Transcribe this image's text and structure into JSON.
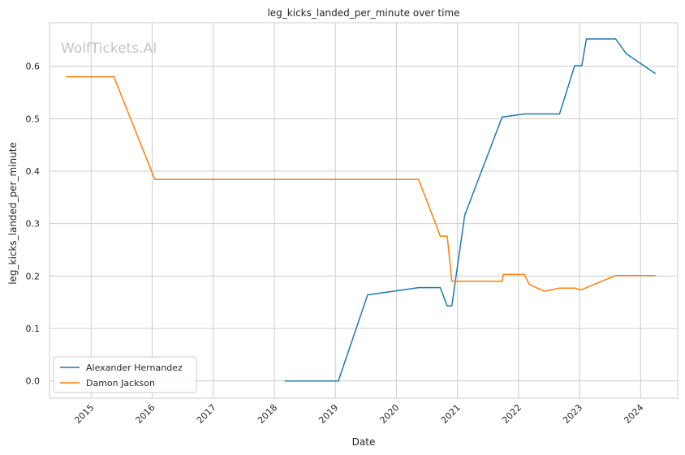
{
  "chart_data": {
    "type": "line",
    "title": "leg_kicks_landed_per_minute over time",
    "xlabel": "Date",
    "ylabel": "leg_kicks_landed_per_minute",
    "watermark": "WolfTickets.AI",
    "xlim": [
      "2014-04-27",
      "2024-08-10"
    ],
    "ylim": [
      -0.033,
      0.683
    ],
    "x_ticks": [
      "2015",
      "2016",
      "2017",
      "2018",
      "2019",
      "2020",
      "2021",
      "2022",
      "2023",
      "2024"
    ],
    "y_ticks": [
      "0.0",
      "0.1",
      "0.2",
      "0.3",
      "0.4",
      "0.5",
      "0.6"
    ],
    "grid": true,
    "legend_position": "lower-left",
    "series": [
      {
        "name": "Alexander Hernandez",
        "color": "#1f77b4",
        "points": [
          [
            "2018-03-03",
            0.0
          ],
          [
            "2019-01-19",
            0.0
          ],
          [
            "2019-07-13",
            0.164
          ],
          [
            "2020-05-13",
            0.178
          ],
          [
            "2020-09-20",
            0.178
          ],
          [
            "2020-10-31",
            0.143
          ],
          [
            "2020-11-28",
            0.143
          ],
          [
            "2021-02-13",
            0.316
          ],
          [
            "2021-09-25",
            0.503
          ],
          [
            "2022-02-05",
            0.509
          ],
          [
            "2022-09-03",
            0.509
          ],
          [
            "2022-12-03",
            0.601
          ],
          [
            "2023-01-14",
            0.601
          ],
          [
            "2023-02-11",
            0.652
          ],
          [
            "2023-08-05",
            0.652
          ],
          [
            "2023-10-07",
            0.624
          ],
          [
            "2024-03-30",
            0.586
          ]
        ]
      },
      {
        "name": "Damon Jackson",
        "color": "#ff7f0e",
        "points": [
          [
            "2014-08-02",
            0.58
          ],
          [
            "2015-05-17",
            0.58
          ],
          [
            "2016-01-17",
            0.384
          ],
          [
            "2020-05-13",
            0.384
          ],
          [
            "2020-09-20",
            0.276
          ],
          [
            "2020-10-31",
            0.276
          ],
          [
            "2020-11-28",
            0.19
          ],
          [
            "2021-09-25",
            0.19
          ],
          [
            "2021-10-02",
            0.203
          ],
          [
            "2022-02-05",
            0.203
          ],
          [
            "2022-03-05",
            0.184
          ],
          [
            "2022-06-04",
            0.171
          ],
          [
            "2022-09-03",
            0.177
          ],
          [
            "2022-12-03",
            0.177
          ],
          [
            "2022-12-31",
            0.174
          ],
          [
            "2023-01-14",
            0.174
          ],
          [
            "2023-08-05",
            0.201
          ],
          [
            "2024-03-30",
            0.201
          ]
        ]
      }
    ]
  }
}
